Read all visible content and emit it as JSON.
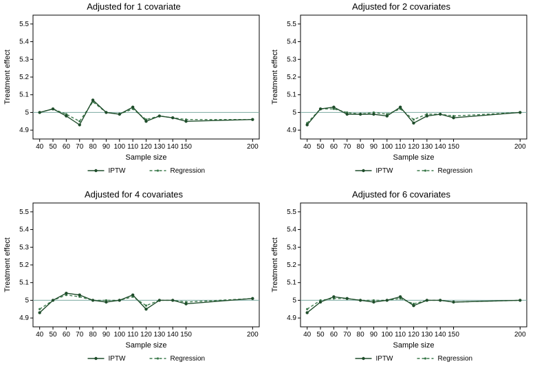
{
  "global": {
    "background_color": "#ffffff",
    "axis_color": "#000000",
    "tick_color": "#000000",
    "text_color": "#000000",
    "ref_line_color": "#7aa8a0",
    "iptw_color": "#1f4d2b",
    "regression_color": "#3c7a4c",
    "title_fontsize": 13,
    "label_fontsize": 11,
    "tick_fontsize": 10,
    "legend_fontsize": 10,
    "marker_radius": 2.2,
    "line_width": 1.4,
    "regression_dash": "4 3",
    "x_values": [
      40,
      50,
      60,
      70,
      80,
      90,
      100,
      110,
      120,
      130,
      140,
      150,
      200
    ],
    "xlim": [
      35,
      205
    ],
    "ylim": [
      4.85,
      5.55
    ],
    "yticks": [
      4.9,
      5.0,
      5.1,
      5.2,
      5.3,
      5.4,
      5.5
    ],
    "ytick_labels": [
      "4.9",
      "5",
      "5.1",
      "5.2",
      "5.3",
      "5.4",
      "5.5"
    ],
    "xlabel": "Sample size",
    "ylabel": "Treatment effect",
    "ref_y": 5.0,
    "legend_iptw": "IPTW",
    "legend_regression": "Regression"
  },
  "panels": [
    {
      "title": "Adjusted for 1 covariate",
      "iptw_y": [
        5.0,
        5.02,
        4.98,
        4.93,
        5.07,
        5.0,
        4.99,
        5.03,
        4.95,
        4.98,
        4.97,
        4.95,
        4.96
      ],
      "regression_y": [
        5.0,
        5.02,
        4.99,
        4.95,
        5.06,
        5.0,
        4.99,
        5.02,
        4.96,
        4.98,
        4.97,
        4.96,
        4.96
      ]
    },
    {
      "title": "Adjusted for 2 covariates",
      "iptw_y": [
        4.93,
        5.02,
        5.03,
        4.99,
        4.99,
        4.99,
        4.98,
        5.03,
        4.94,
        4.98,
        4.99,
        4.97,
        5.0
      ],
      "regression_y": [
        4.94,
        5.02,
        5.02,
        5.0,
        4.99,
        5.0,
        4.99,
        5.02,
        4.96,
        4.99,
        4.99,
        4.98,
        5.0
      ]
    },
    {
      "title": "Adjusted for 4 covariates",
      "iptw_y": [
        4.93,
        5.0,
        5.04,
        5.03,
        5.0,
        4.99,
        5.0,
        5.03,
        4.95,
        5.0,
        5.0,
        4.98,
        5.01
      ],
      "regression_y": [
        4.95,
        5.0,
        5.03,
        5.02,
        5.0,
        5.0,
        5.0,
        5.02,
        4.97,
        5.0,
        5.0,
        4.99,
        5.01
      ]
    },
    {
      "title": "Adjusted for 6 covariates",
      "iptw_y": [
        4.93,
        4.99,
        5.02,
        5.01,
        5.0,
        4.99,
        5.0,
        5.02,
        4.97,
        5.0,
        5.0,
        4.99,
        5.0
      ],
      "regression_y": [
        4.95,
        5.0,
        5.01,
        5.01,
        5.0,
        5.0,
        5.0,
        5.01,
        4.98,
        5.0,
        5.0,
        4.99,
        5.0
      ]
    }
  ]
}
